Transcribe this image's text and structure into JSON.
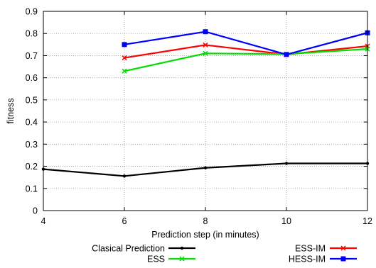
{
  "chart_data": {
    "type": "line",
    "title": "",
    "xlabel": "Prediction step (in minutes)",
    "ylabel": "fitness",
    "xlim": [
      4,
      12
    ],
    "ylim": [
      0,
      0.9
    ],
    "xticks": [
      "4",
      "6",
      "8",
      "10",
      "12"
    ],
    "yticks": [
      "0",
      "0.1",
      "0.2",
      "0.3",
      "0.4",
      "0.5",
      "0.6",
      "0.7",
      "0.8",
      "0.9"
    ],
    "grid": true,
    "legend_position": "bottom",
    "series": [
      {
        "name": "Clasical Prediction",
        "color": "#000000",
        "marker": "dot",
        "x": [
          4,
          6,
          8,
          10,
          12
        ],
        "y": [
          0.187,
          0.156,
          0.193,
          0.213,
          0.213
        ]
      },
      {
        "name": "ESS-IM",
        "color": "#ff0000",
        "marker": "x",
        "x": [
          6,
          8,
          10,
          12
        ],
        "y": [
          0.69,
          0.748,
          0.705,
          0.743
        ]
      },
      {
        "name": "ESS",
        "color": "#00dd00",
        "marker": "x",
        "x": [
          6,
          8,
          10,
          12
        ],
        "y": [
          0.63,
          0.71,
          0.707,
          0.73
        ]
      },
      {
        "name": "HESS-IM",
        "color": "#0000ff",
        "marker": "square",
        "x": [
          6,
          8,
          10,
          12
        ],
        "y": [
          0.75,
          0.808,
          0.705,
          0.803
        ]
      }
    ]
  }
}
